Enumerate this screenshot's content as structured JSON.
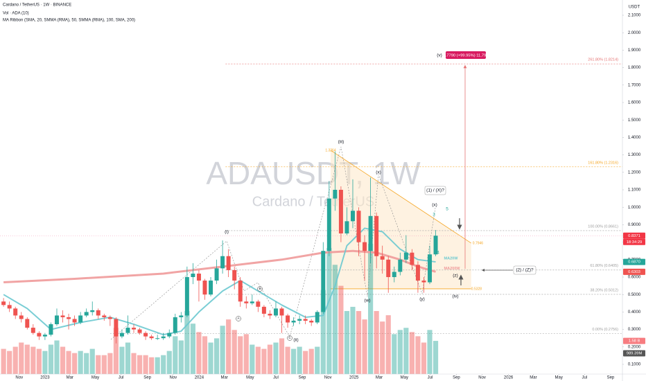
{
  "header": {
    "symbol": "Cardano / TetherUS · 1W · BINANCE",
    "volume": "Vol · ADA (10)",
    "ma_ribbon": "MA Ribbon (SMA, 20, SMMA (RMA), 50, SMMA (RMA), 100, SMA, 200)",
    "currency": "USDT"
  },
  "watermark": {
    "ticker": "ADAUSDT, 1W",
    "name": "Cardano / TetherUS"
  },
  "chart_data": {
    "type": "candlestick",
    "up_color": "#26a69a",
    "down_color": "#ef5350",
    "grid": false,
    "xlim": [
      -15.2,
      195.1
    ],
    "ylim": [
      0.0444,
      2.1873
    ],
    "volume_lim": [
      0,
      17.8
    ],
    "yticks": [
      {
        "value": 2.1,
        "label": "2.1000"
      },
      {
        "value": 2.0,
        "label": "2.0000"
      },
      {
        "value": 1.9,
        "label": "1.9000"
      },
      {
        "value": 1.8,
        "label": "1.8000"
      },
      {
        "value": 1.7,
        "label": "1.7000"
      },
      {
        "value": 1.6,
        "label": "1.6000"
      },
      {
        "value": 1.5,
        "label": "1.5000"
      },
      {
        "value": 1.4,
        "label": "1.4000"
      },
      {
        "value": 1.3,
        "label": "1.3000"
      },
      {
        "value": 1.2,
        "label": "1.2000"
      },
      {
        "value": 1.1,
        "label": "1.1000"
      },
      {
        "value": 1.0,
        "label": "1.0000"
      },
      {
        "value": 0.9,
        "label": "0.9000"
      },
      {
        "value": 0.8,
        "label": "0.8000"
      },
      {
        "value": 0.7,
        "label": "0.7000"
      },
      {
        "value": 0.6,
        "label": "0.6000"
      },
      {
        "value": 0.5,
        "label": "0.5000"
      },
      {
        "value": 0.4,
        "label": "0.4000"
      },
      {
        "value": 0.3,
        "label": "0.3000"
      },
      {
        "value": 0.2,
        "label": "0.2000"
      },
      {
        "value": 0.1,
        "label": "0.1000"
      }
    ],
    "xticks": [
      {
        "value": -8.7,
        "label": "Nov"
      },
      {
        "value": 0,
        "label": "2023"
      },
      {
        "value": 8.4,
        "label": "Mar"
      },
      {
        "value": 17,
        "label": "May"
      },
      {
        "value": 25.7,
        "label": "Jul"
      },
      {
        "value": 34.6,
        "label": "Sep"
      },
      {
        "value": 43.3,
        "label": "Nov"
      },
      {
        "value": 52.1,
        "label": "2024"
      },
      {
        "value": 60.6,
        "label": "Mar"
      },
      {
        "value": 69.3,
        "label": "May"
      },
      {
        "value": 78,
        "label": "Jul"
      },
      {
        "value": 86.9,
        "label": "Sep"
      },
      {
        "value": 95.6,
        "label": "Nov"
      },
      {
        "value": 104.4,
        "label": "2025"
      },
      {
        "value": 112.9,
        "label": "Mar"
      },
      {
        "value": 121.4,
        "label": "May"
      },
      {
        "value": 130.1,
        "label": "Jul"
      },
      {
        "value": 139,
        "label": "Sep"
      },
      {
        "value": 147.7,
        "label": "Nov"
      },
      {
        "value": 156.6,
        "label": "2026"
      },
      {
        "value": 165,
        "label": "Mar"
      },
      {
        "value": 173.6,
        "label": "May"
      },
      {
        "value": 182.3,
        "label": "Jul"
      },
      {
        "value": 191.1,
        "label": "Sep"
      }
    ],
    "x": [
      -14,
      -12,
      -10,
      -8,
      -6,
      -4,
      -2,
      0,
      2,
      4,
      6,
      8,
      10,
      12,
      14,
      16,
      18,
      20,
      22,
      24,
      26,
      28,
      30,
      32,
      34,
      36,
      38,
      40,
      42,
      44,
      46,
      48,
      50,
      52,
      54,
      56,
      58,
      60,
      62,
      64,
      66,
      68,
      70,
      72,
      74,
      76,
      78,
      80,
      82,
      84,
      86,
      88,
      90,
      92,
      94,
      96,
      98,
      100,
      102,
      104,
      106,
      108,
      110,
      112,
      114,
      116,
      118,
      120,
      122,
      124,
      126,
      128,
      130,
      132
    ],
    "ohlc": [
      [
        0.46,
        0.48,
        0.43,
        0.44
      ],
      [
        0.44,
        0.46,
        0.4,
        0.42
      ],
      [
        0.42,
        0.43,
        0.36,
        0.38
      ],
      [
        0.38,
        0.4,
        0.34,
        0.36
      ],
      [
        0.36,
        0.37,
        0.3,
        0.31
      ],
      [
        0.31,
        0.33,
        0.27,
        0.28
      ],
      [
        0.28,
        0.29,
        0.24,
        0.26
      ],
      [
        0.26,
        0.28,
        0.24,
        0.27
      ],
      [
        0.27,
        0.34,
        0.26,
        0.33
      ],
      [
        0.33,
        0.42,
        0.32,
        0.38
      ],
      [
        0.38,
        0.41,
        0.34,
        0.37
      ],
      [
        0.37,
        0.39,
        0.3,
        0.36
      ],
      [
        0.36,
        0.38,
        0.32,
        0.34
      ],
      [
        0.34,
        0.4,
        0.33,
        0.38
      ],
      [
        0.38,
        0.42,
        0.37,
        0.4
      ],
      [
        0.4,
        0.46,
        0.38,
        0.41
      ],
      [
        0.41,
        0.42,
        0.36,
        0.38
      ],
      [
        0.38,
        0.39,
        0.35,
        0.37
      ],
      [
        0.37,
        0.38,
        0.32,
        0.36
      ],
      [
        0.36,
        0.37,
        0.22,
        0.26
      ],
      [
        0.26,
        0.3,
        0.25,
        0.28
      ],
      [
        0.28,
        0.38,
        0.27,
        0.31
      ],
      [
        0.31,
        0.33,
        0.28,
        0.3
      ],
      [
        0.3,
        0.31,
        0.27,
        0.28
      ],
      [
        0.28,
        0.29,
        0.24,
        0.26
      ],
      [
        0.26,
        0.27,
        0.24,
        0.25
      ],
      [
        0.25,
        0.27,
        0.24,
        0.25
      ],
      [
        0.25,
        0.28,
        0.24,
        0.26
      ],
      [
        0.26,
        0.3,
        0.25,
        0.28
      ],
      [
        0.28,
        0.39,
        0.27,
        0.37
      ],
      [
        0.37,
        0.4,
        0.34,
        0.38
      ],
      [
        0.38,
        0.66,
        0.37,
        0.6
      ],
      [
        0.6,
        0.68,
        0.56,
        0.62
      ],
      [
        0.62,
        0.64,
        0.46,
        0.58
      ],
      [
        0.58,
        0.59,
        0.47,
        0.5
      ],
      [
        0.5,
        0.6,
        0.49,
        0.58
      ],
      [
        0.58,
        0.7,
        0.56,
        0.65
      ],
      [
        0.65,
        0.81,
        0.62,
        0.72
      ],
      [
        0.72,
        0.76,
        0.6,
        0.64
      ],
      [
        0.64,
        0.66,
        0.53,
        0.58
      ],
      [
        0.58,
        0.6,
        0.43,
        0.46
      ],
      [
        0.46,
        0.49,
        0.42,
        0.45
      ],
      [
        0.45,
        0.5,
        0.44,
        0.46
      ],
      [
        0.46,
        0.47,
        0.4,
        0.43
      ],
      [
        0.43,
        0.44,
        0.37,
        0.39
      ],
      [
        0.39,
        0.41,
        0.36,
        0.38
      ],
      [
        0.38,
        0.46,
        0.37,
        0.42
      ],
      [
        0.42,
        0.43,
        0.28,
        0.38
      ],
      [
        0.38,
        0.39,
        0.31,
        0.34
      ],
      [
        0.34,
        0.37,
        0.32,
        0.35
      ],
      [
        0.35,
        0.38,
        0.33,
        0.36
      ],
      [
        0.36,
        0.38,
        0.33,
        0.35
      ],
      [
        0.35,
        0.36,
        0.32,
        0.34
      ],
      [
        0.34,
        0.41,
        0.33,
        0.4
      ],
      [
        0.4,
        0.8,
        0.39,
        0.75
      ],
      [
        0.75,
        1.15,
        0.72,
        1.05
      ],
      [
        1.05,
        1.32,
        0.98,
        1.1
      ],
      [
        1.1,
        1.12,
        0.8,
        0.85
      ],
      [
        0.85,
        1.0,
        0.84,
        0.92
      ],
      [
        0.92,
        1.16,
        0.88,
        0.98
      ],
      [
        0.98,
        1.0,
        0.72,
        0.8
      ],
      [
        0.8,
        0.84,
        0.58,
        0.75
      ],
      [
        0.75,
        1.17,
        0.68,
        0.95
      ],
      [
        0.95,
        0.97,
        0.65,
        0.72
      ],
      [
        0.72,
        0.78,
        0.62,
        0.7
      ],
      [
        0.7,
        0.72,
        0.51,
        0.6
      ],
      [
        0.6,
        0.66,
        0.57,
        0.63
      ],
      [
        0.63,
        0.74,
        0.61,
        0.7
      ],
      [
        0.7,
        0.84,
        0.68,
        0.74
      ],
      [
        0.74,
        0.76,
        0.64,
        0.67
      ],
      [
        0.67,
        0.69,
        0.51,
        0.58
      ],
      [
        0.58,
        0.6,
        0.51,
        0.57
      ],
      [
        0.57,
        0.78,
        0.56,
        0.73
      ],
      [
        0.73,
        0.87,
        0.72,
        0.8371
      ]
    ],
    "volume": [
      1.2,
      1.1,
      1.3,
      1.5,
      1.4,
      1.3,
      1.2,
      1.1,
      1.4,
      1.6,
      1.3,
      1.1,
      1.0,
      1.1,
      1.0,
      1.2,
      0.9,
      0.9,
      1.0,
      2.2,
      1.3,
      1.5,
      1.0,
      0.9,
      0.9,
      0.8,
      0.8,
      0.9,
      1.1,
      1.8,
      1.6,
      3.0,
      2.4,
      2.0,
      1.8,
      1.5,
      1.7,
      2.3,
      2.6,
      2.1,
      1.8,
      1.9,
      1.4,
      1.3,
      1.2,
      1.4,
      1.5,
      1.7,
      1.3,
      1.2,
      1.3,
      1.1,
      1.2,
      1.3,
      4.0,
      6.0,
      5.2,
      4.2,
      3.0,
      3.2,
      3.0,
      2.6,
      6.2,
      3.0,
      2.5,
      2.8,
      1.9,
      2.1,
      2.2,
      2.0,
      1.8,
      1.5,
      2.1,
      1.58
    ],
    "moving_averages": [
      {
        "name": "MA200W",
        "color": "#ef9a9a",
        "width": 3,
        "x": [
          -14,
          10,
          40,
          60,
          80,
          94,
          104,
          112,
          120,
          126,
          132
        ],
        "values": [
          0.57,
          0.59,
          0.62,
          0.66,
          0.7,
          0.74,
          0.75,
          0.74,
          0.7,
          0.66,
          0.6303
        ]
      },
      {
        "name": "MA20W",
        "color": "#6cc9d0",
        "width": 2,
        "x": [
          -14,
          -6,
          2,
          12,
          22,
          30,
          40,
          46,
          52,
          60,
          66,
          72,
          80,
          88,
          94,
          98,
          102,
          108,
          114,
          120,
          126,
          132
        ],
        "values": [
          0.5,
          0.42,
          0.3,
          0.34,
          0.37,
          0.33,
          0.27,
          0.29,
          0.4,
          0.52,
          0.58,
          0.52,
          0.44,
          0.37,
          0.38,
          0.55,
          0.78,
          0.88,
          0.86,
          0.76,
          0.7,
          0.687
        ]
      }
    ],
    "fib_levels": [
      {
        "value": 1.8214,
        "label": "261.80% (1.8214)",
        "color": "#e57373"
      },
      {
        "value": 1.2316,
        "label": "161.80% (1.2316)",
        "color": "#f5a623"
      },
      {
        "value": 0.8661,
        "label": "100.00% (0.8661)",
        "color": "#9e9e9e"
      },
      {
        "value": 0.6405,
        "label": "61.80% (0.6405)",
        "color": "#9e9e9e"
      },
      {
        "value": 0.5012,
        "label": "38.20% (0.5012)",
        "color": "#9e9e9e"
      },
      {
        "value": 0.2756,
        "label": "0.00% (0.2756)",
        "color": "#9e9e9e"
      }
    ],
    "triangle_points": [
      1.3264,
      0.7946,
      0.5328
    ],
    "last_price": 0.8371,
    "countdown": "18:34:29",
    "tags": [
      {
        "value": 0.687,
        "label": "0.6870",
        "color": "#26a69a"
      },
      {
        "value": 0.6303,
        "color": "#ef5350"
      },
      {
        "value": 1.58,
        "label": "1.58 B",
        "color": "#f77c80",
        "axis": "volume"
      },
      {
        "value": 0.98939,
        "label": "989.39M",
        "color": "#555555",
        "axis": "volume"
      }
    ],
    "annotations": [
      "(iii)",
      "(i)",
      "(ii)",
      "A",
      "B",
      "C",
      "(w)",
      "(x)",
      "(x)",
      "(y)",
      "(z)",
      "(iv)",
      "(v)",
      "(1) / (X)?",
      "(2) / (Z)?",
      "3",
      "4",
      "5"
    ],
    "target_label": "1.7790 (+99.95%) 11,792"
  }
}
